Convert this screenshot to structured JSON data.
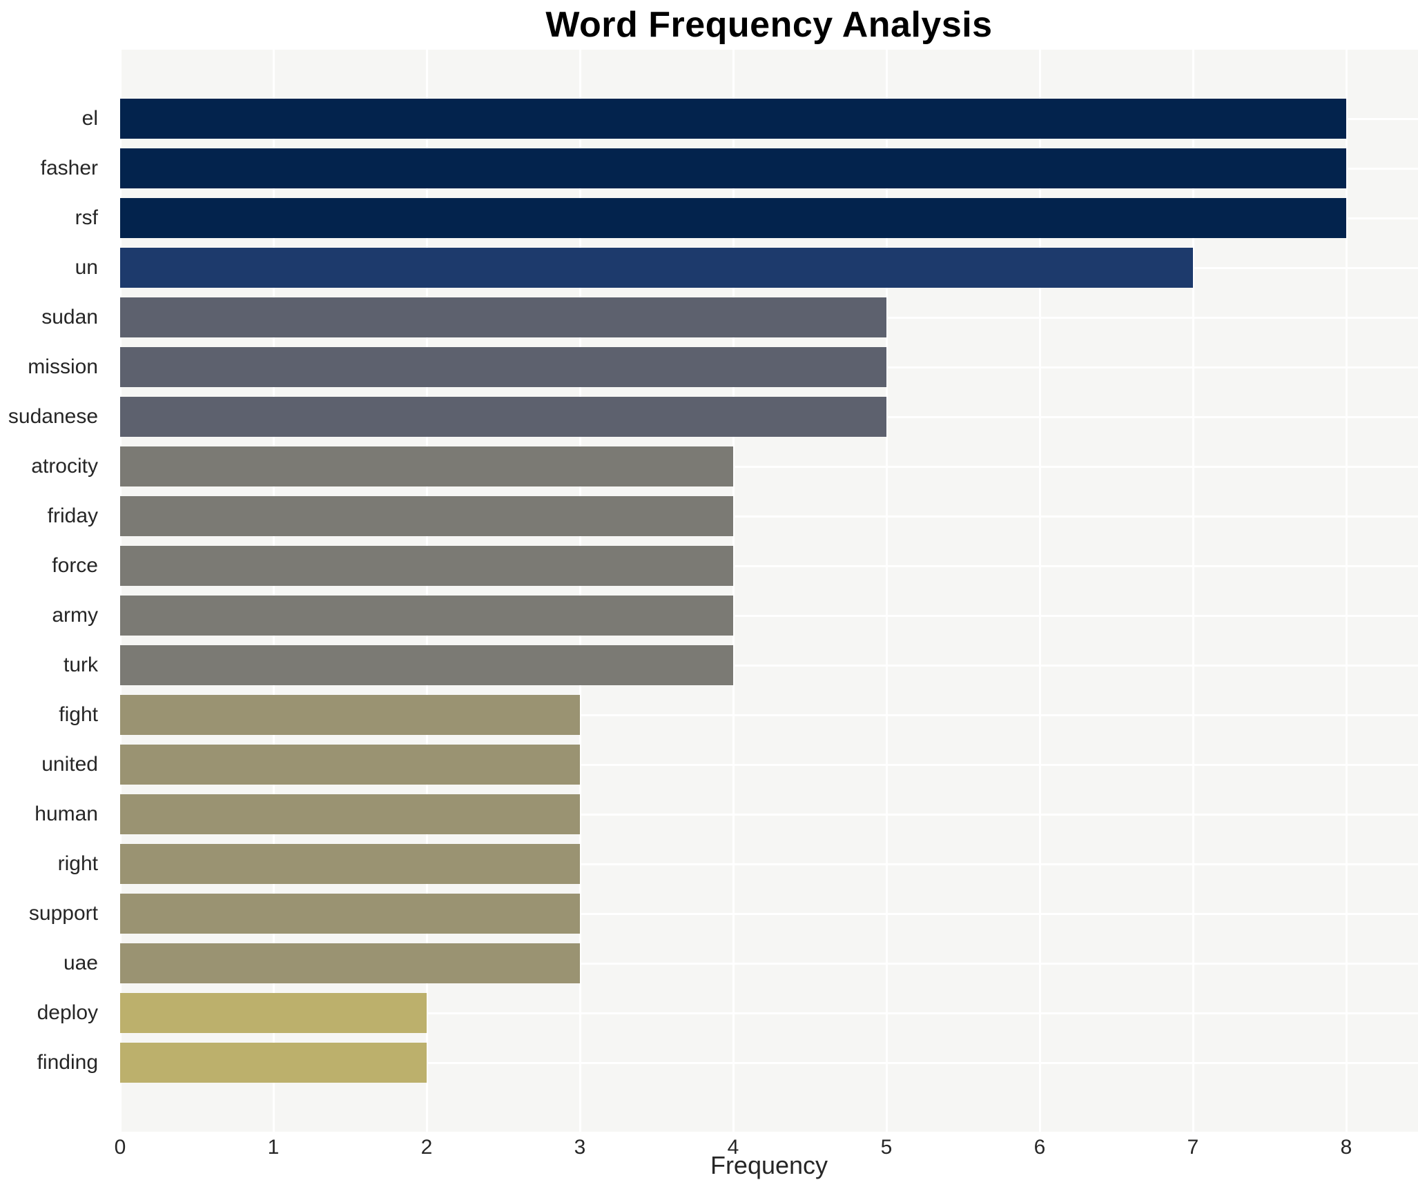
{
  "chart_data": {
    "type": "bar",
    "orientation": "horizontal",
    "title": "Word Frequency Analysis",
    "xlabel": "Frequency",
    "ylabel": "",
    "categories": [
      "el",
      "fasher",
      "rsf",
      "un",
      "sudan",
      "mission",
      "sudanese",
      "atrocity",
      "friday",
      "force",
      "army",
      "turk",
      "fight",
      "united",
      "human",
      "right",
      "support",
      "uae",
      "deploy",
      "finding"
    ],
    "values": [
      8,
      8,
      8,
      7,
      5,
      5,
      5,
      4,
      4,
      4,
      4,
      4,
      3,
      3,
      3,
      3,
      3,
      3,
      2,
      2
    ],
    "bar_colors": [
      "#03234d",
      "#03234d",
      "#03234d",
      "#1d3a6c",
      "#5d616e",
      "#5d616e",
      "#5d616e",
      "#7b7a74",
      "#7b7a74",
      "#7b7a74",
      "#7b7a74",
      "#7b7a74",
      "#9a9372",
      "#9a9372",
      "#9a9372",
      "#9a9372",
      "#9a9372",
      "#9a9372",
      "#bcb06c",
      "#bcb06c"
    ],
    "x_ticks": [
      "0",
      "1",
      "2",
      "3",
      "4",
      "5",
      "6",
      "7",
      "8"
    ],
    "xlim": [
      0,
      8.47
    ],
    "grid": true,
    "legend": "none",
    "colors": {
      "plot_background": "#f6f6f4",
      "figure_background": "#ffffff",
      "gridline": "#ffffff",
      "tick_text": "#262626",
      "title_text": "#000000"
    }
  }
}
